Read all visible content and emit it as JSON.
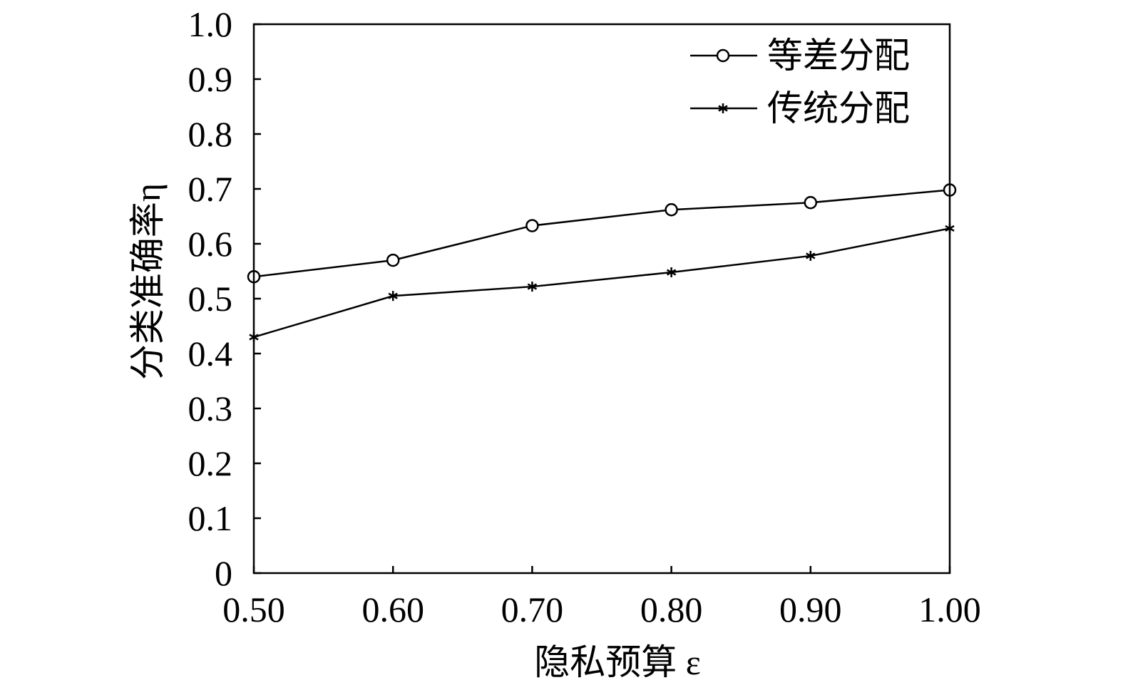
{
  "chart_data": {
    "type": "line",
    "x": [
      0.5,
      0.6,
      0.7,
      0.8,
      0.9,
      1.0
    ],
    "x_tick_labels": [
      "0.50",
      "0.60",
      "0.70",
      "0.80",
      "0.90",
      "1.00"
    ],
    "y_ticks": [
      0,
      0.1,
      0.2,
      0.3,
      0.4,
      0.5,
      0.6,
      0.7,
      0.8,
      0.9,
      1.0
    ],
    "y_tick_labels": [
      "0",
      "0.1",
      "0.2",
      "0.3",
      "0.4",
      "0.5",
      "0.6",
      "0.7",
      "0.8",
      "0.9",
      "1.0"
    ],
    "xlim": [
      0.5,
      1.0
    ],
    "ylim": [
      0,
      1.0
    ],
    "xlabel": "隐私预算 ε",
    "ylabel": "分类准确率η",
    "grid": false,
    "legend_position": "top-right",
    "series": [
      {
        "name": "等差分配",
        "marker": "circle",
        "values": [
          0.54,
          0.57,
          0.633,
          0.662,
          0.675,
          0.698
        ]
      },
      {
        "name": "传统分配",
        "marker": "star",
        "values": [
          0.43,
          0.505,
          0.522,
          0.548,
          0.578,
          0.628
        ]
      }
    ]
  }
}
